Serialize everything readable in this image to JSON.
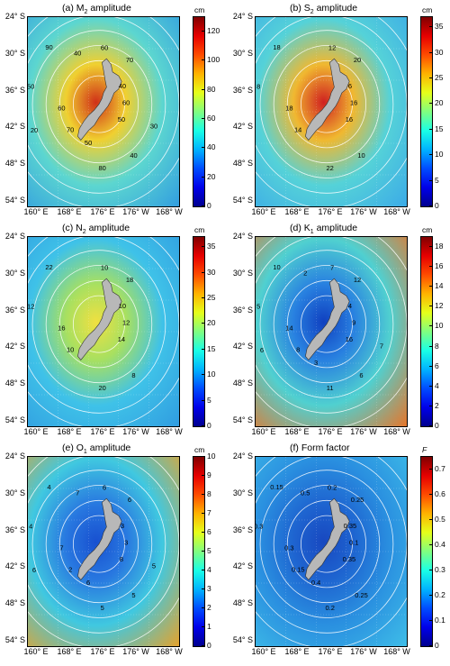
{
  "panels": [
    {
      "id": "a",
      "title_pre": "(a) M",
      "title_sub": "2",
      "title_post": " amplitude",
      "unit": "cm",
      "lat_labels": [
        "24° S",
        "30° S",
        "36° S",
        "42° S",
        "48° S",
        "54° S"
      ],
      "lon_labels": [
        "160° E",
        "168° E",
        "176° E",
        "176° W",
        "168° W"
      ],
      "cbar_ticks": [
        "120",
        "100",
        "80",
        "60",
        "40",
        "20",
        "0"
      ],
      "cbar_max": 130,
      "contour_labels": [
        "50",
        "60",
        "70",
        "80",
        "90",
        "60",
        "70",
        "60",
        "40",
        "50",
        "40",
        "50",
        "40",
        "30",
        "20"
      ],
      "colors": {
        "outer": "#2f9ae0",
        "mid": "#5cd6d0",
        "inner": "#f0d030",
        "core": "#d03018"
      }
    },
    {
      "id": "b",
      "title_pre": "(b) S",
      "title_sub": "2",
      "title_post": " amplitude",
      "unit": "cm",
      "lat_labels": [
        "24° S",
        "30° S",
        "36° S",
        "42° S",
        "48° S",
        "54° S"
      ],
      "lon_labels": [
        "160° E",
        "168° E",
        "176° E",
        "176° W",
        "168° W"
      ],
      "cbar_ticks": [
        "35",
        "30",
        "25",
        "20",
        "15",
        "10",
        "5",
        "0"
      ],
      "cbar_max": 37,
      "contour_labels": [
        "16",
        "18",
        "20",
        "22",
        "18",
        "16",
        "14",
        "12",
        "10",
        "8",
        "6"
      ],
      "colors": {
        "outer": "#3aa8e8",
        "mid": "#55d2d8",
        "inner": "#f0b830",
        "core": "#d02020"
      }
    },
    {
      "id": "c",
      "title_pre": "(c) N",
      "title_sub": "2",
      "title_post": " amplitude",
      "unit": "cm",
      "lat_labels": [
        "24° S",
        "30° S",
        "36° S",
        "42° S",
        "48° S",
        "54° S"
      ],
      "lon_labels": [
        "160° E",
        "168° E",
        "176° E",
        "176° W",
        "168° W"
      ],
      "cbar_ticks": [
        "35",
        "30",
        "25",
        "20",
        "15",
        "10",
        "5",
        "0"
      ],
      "cbar_max": 37,
      "contour_labels": [
        "14",
        "16",
        "18",
        "20",
        "22",
        "12",
        "10",
        "10",
        "8",
        "12",
        "10"
      ],
      "colors": {
        "outer": "#2f9ae0",
        "mid": "#3fc2e8",
        "inner": "#a8e060",
        "core": "#f0e040"
      }
    },
    {
      "id": "d",
      "title_pre": "(d) K",
      "title_sub": "1",
      "title_post": " amplitude",
      "unit": "cm",
      "lat_labels": [
        "24° S",
        "30° S",
        "36° S",
        "42° S",
        "48° S",
        "54° S"
      ],
      "lon_labels": [
        "160° E",
        "168° E",
        "176° E",
        "176° W",
        "168° W"
      ],
      "cbar_ticks": [
        "18",
        "16",
        "14",
        "12",
        "10",
        "8",
        "6",
        "4",
        "2",
        "0"
      ],
      "cbar_max": 19,
      "contour_labels": [
        "16",
        "14",
        "12",
        "11",
        "10",
        "9",
        "8",
        "7",
        "6",
        "5",
        "4",
        "3",
        "2",
        "7",
        "6"
      ],
      "colors": {
        "outer": "#f07020",
        "mid": "#50d0d0",
        "inner": "#2880e0",
        "core": "#1040c0"
      }
    },
    {
      "id": "e",
      "title_pre": "(e) O",
      "title_sub": "1",
      "title_post": " amplitude",
      "unit": "cm",
      "lat_labels": [
        "24° S",
        "30° S",
        "36° S",
        "42° S",
        "48° S",
        "54° S"
      ],
      "lon_labels": [
        "160° E",
        "168° E",
        "176° E",
        "176° W",
        "168° W"
      ],
      "cbar_ticks": [
        "10",
        "9",
        "8",
        "7",
        "6",
        "5",
        "4",
        "3",
        "2",
        "1",
        "0"
      ],
      "cbar_max": 10,
      "contour_labels": [
        "8",
        "7",
        "6",
        "5",
        "4",
        "3",
        "2",
        "6",
        "5",
        "4",
        "3",
        "6",
        "7",
        "5",
        "6"
      ],
      "colors": {
        "outer": "#f0a020",
        "mid": "#40c8e0",
        "inner": "#2878e0",
        "core": "#1850d0"
      }
    },
    {
      "id": "f",
      "title_pre": "(f) Form factor",
      "title_sub": "",
      "title_post": "",
      "unit": "F",
      "lat_labels": [
        "24° S",
        "30° S",
        "36° S",
        "42° S",
        "48° S",
        "54° S"
      ],
      "lon_labels": [
        "160° E",
        "168° E",
        "176° E",
        "176° W",
        "168° W"
      ],
      "cbar_ticks": [
        "0.7",
        "0.6",
        "0.5",
        "0.4",
        "0.3",
        "0.2",
        "0.1",
        "0"
      ],
      "cbar_max": 0.75,
      "contour_labels": [
        "0.35",
        "0.3",
        "0.25",
        "0.2",
        "0.15",
        "0.1",
        "0.15",
        "0.2",
        "0.25",
        "0.3",
        "0.35",
        "0.4",
        "0.5"
      ],
      "colors": {
        "outer": "#40c0e8",
        "mid": "#2a90e0",
        "inner": "#1e64d0",
        "core": "#1848c0"
      }
    }
  ]
}
